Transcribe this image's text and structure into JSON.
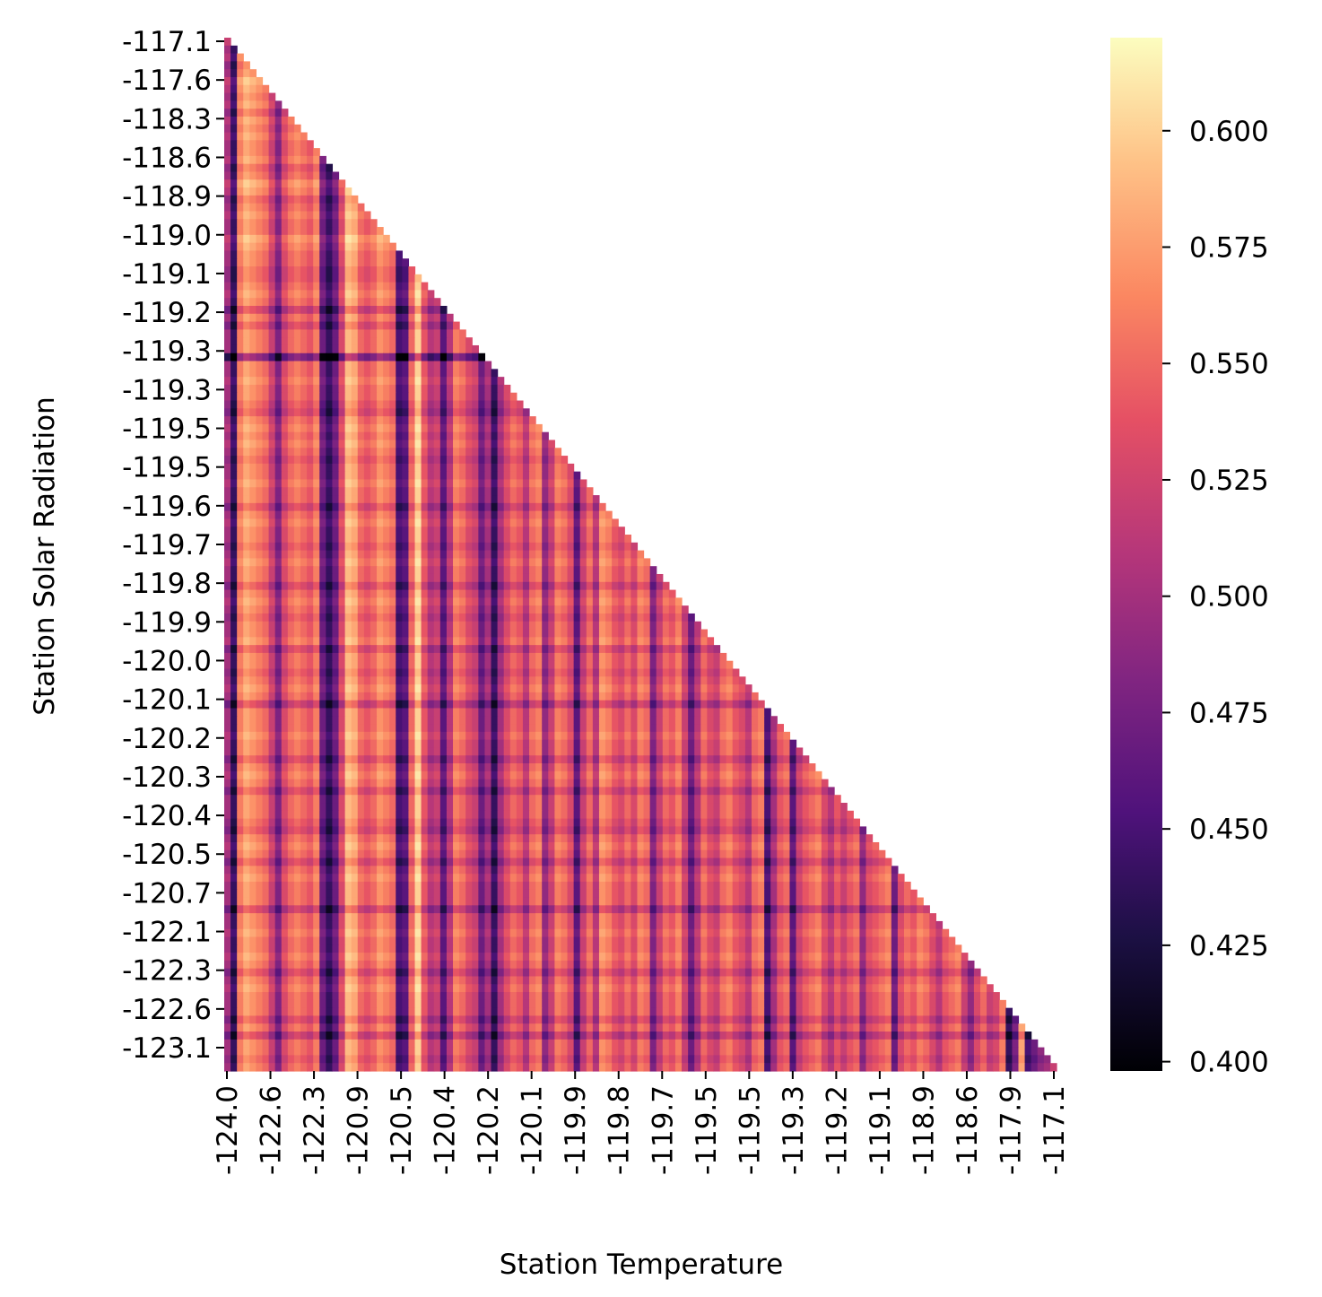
{
  "chart_data": {
    "type": "heatmap",
    "title": "",
    "xlabel": "Station Temperature",
    "ylabel": "Station Solar Radiation",
    "mask": "upper-triangle",
    "colormap": "magma",
    "x_tick_labels": [
      "-124.0",
      "-122.6",
      "-122.3",
      "-120.9",
      "-120.5",
      "-120.4",
      "-120.2",
      "-120.1",
      "-119.9",
      "-119.8",
      "-119.7",
      "-119.5",
      "-119.5",
      "-119.3",
      "-119.2",
      "-119.1",
      "-118.9",
      "-118.6",
      "-117.9",
      "-117.1"
    ],
    "y_tick_labels": [
      "-117.1",
      "-117.6",
      "-118.3",
      "-118.6",
      "-118.9",
      "-119.0",
      "-119.1",
      "-119.2",
      "-119.3",
      "-119.3",
      "-119.5",
      "-119.5",
      "-119.6",
      "-119.7",
      "-119.8",
      "-119.9",
      "-120.0",
      "-120.1",
      "-120.2",
      "-120.3",
      "-120.4",
      "-120.5",
      "-120.7",
      "-122.1",
      "-122.3",
      "-122.6",
      "-123.1"
    ],
    "value_range": [
      0.398,
      0.62
    ],
    "colorbar_ticks": [
      "0.400",
      "0.425",
      "0.450",
      "0.475",
      "0.500",
      "0.525",
      "0.550",
      "0.575",
      "0.600"
    ],
    "colorbar_tick_values": [
      0.4,
      0.425,
      0.45,
      0.475,
      0.5,
      0.525,
      0.55,
      0.575,
      0.6
    ],
    "column_means": [
      0.5,
      0.44,
      0.56,
      0.58,
      0.57,
      0.56,
      0.55,
      0.52,
      0.48,
      0.53,
      0.55,
      0.56,
      0.55,
      0.54,
      0.56,
      0.47,
      0.44,
      0.47,
      0.53,
      0.59,
      0.58,
      0.55,
      0.54,
      0.55,
      0.57,
      0.56,
      0.55,
      0.45,
      0.46,
      0.55,
      0.6,
      0.54,
      0.51,
      0.52,
      0.46,
      0.51,
      0.56,
      0.55,
      0.53,
      0.52,
      0.47,
      0.5,
      0.44,
      0.5,
      0.53,
      0.55,
      0.54,
      0.51,
      0.55,
      0.56,
      0.49,
      0.52,
      0.56,
      0.55,
      0.53,
      0.46,
      0.52,
      0.55,
      0.51,
      0.57,
      0.56,
      0.54,
      0.53,
      0.55,
      0.53,
      0.56,
      0.55,
      0.48,
      0.52,
      0.55,
      0.54,
      0.56,
      0.52,
      0.47,
      0.51,
      0.55,
      0.53,
      0.52,
      0.55,
      0.56,
      0.54,
      0.53,
      0.51,
      0.55,
      0.56,
      0.45,
      0.5,
      0.54,
      0.55,
      0.46,
      0.52,
      0.54,
      0.55,
      0.56,
      0.53,
      0.51,
      0.54,
      0.52,
      0.54,
      0.55,
      0.49,
      0.53,
      0.54,
      0.55,
      0.56,
      0.47,
      0.53,
      0.55,
      0.54,
      0.56,
      0.55,
      0.53,
      0.51,
      0.54,
      0.55,
      0.56,
      0.52,
      0.49,
      0.53,
      0.55,
      0.52,
      0.53,
      0.56,
      0.44,
      0.48,
      0.58,
      0.45,
      0.47,
      0.49,
      0.5,
      0.52
    ],
    "row_offsets": [
      0.02,
      0.0,
      0.01,
      -0.01,
      0.0,
      0.02,
      0.01,
      0.0,
      0.01,
      -0.01,
      0.01,
      0.0,
      0.01,
      0.0,
      0.0,
      0.01,
      -0.01,
      0.0,
      0.02,
      0.01,
      -0.01,
      0.0,
      0.01,
      0.0,
      0.0,
      0.02,
      0.01,
      0.0,
      0.0,
      -0.01,
      -0.01,
      0.0,
      0.01,
      0.0,
      -0.03,
      0.0,
      -0.02,
      0.0,
      0.0,
      0.0,
      -0.07,
      0.0,
      0.0,
      0.01,
      0.0,
      0.0,
      -0.01,
      -0.02,
      0.0,
      0.01,
      0.0,
      0.01,
      0.0,
      -0.01,
      0.0,
      0.0,
      0.01,
      0.0,
      0.0,
      -0.02,
      0.0,
      0.01,
      0.0,
      0.0,
      -0.01,
      0.0,
      0.01,
      0.0,
      0.0,
      -0.02,
      0.0,
      0.01,
      0.0,
      -0.01,
      0.0,
      0.0,
      0.01,
      -0.02,
      0.0,
      0.0,
      -0.01,
      0.0,
      0.01,
      0.0,
      -0.03,
      0.0,
      0.0,
      0.0,
      0.01,
      0.0,
      0.0,
      -0.02,
      0.0,
      0.01,
      0.0,
      -0.02,
      0.0,
      0.0,
      0.0,
      -0.01,
      -0.02,
      0.0,
      0.01,
      0.0,
      -0.02,
      0.0,
      0.01,
      0.0,
      0.0,
      0.0,
      -0.03,
      0.0,
      0.0,
      0.01,
      0.0,
      0.0,
      0.01,
      0.0,
      -0.02,
      0.0,
      0.01,
      0.0,
      0.0,
      0.0,
      -0.02,
      0.0,
      -0.03,
      0.0,
      0.0,
      -0.01,
      0.0,
      -0.04,
      -0.03
    ]
  }
}
